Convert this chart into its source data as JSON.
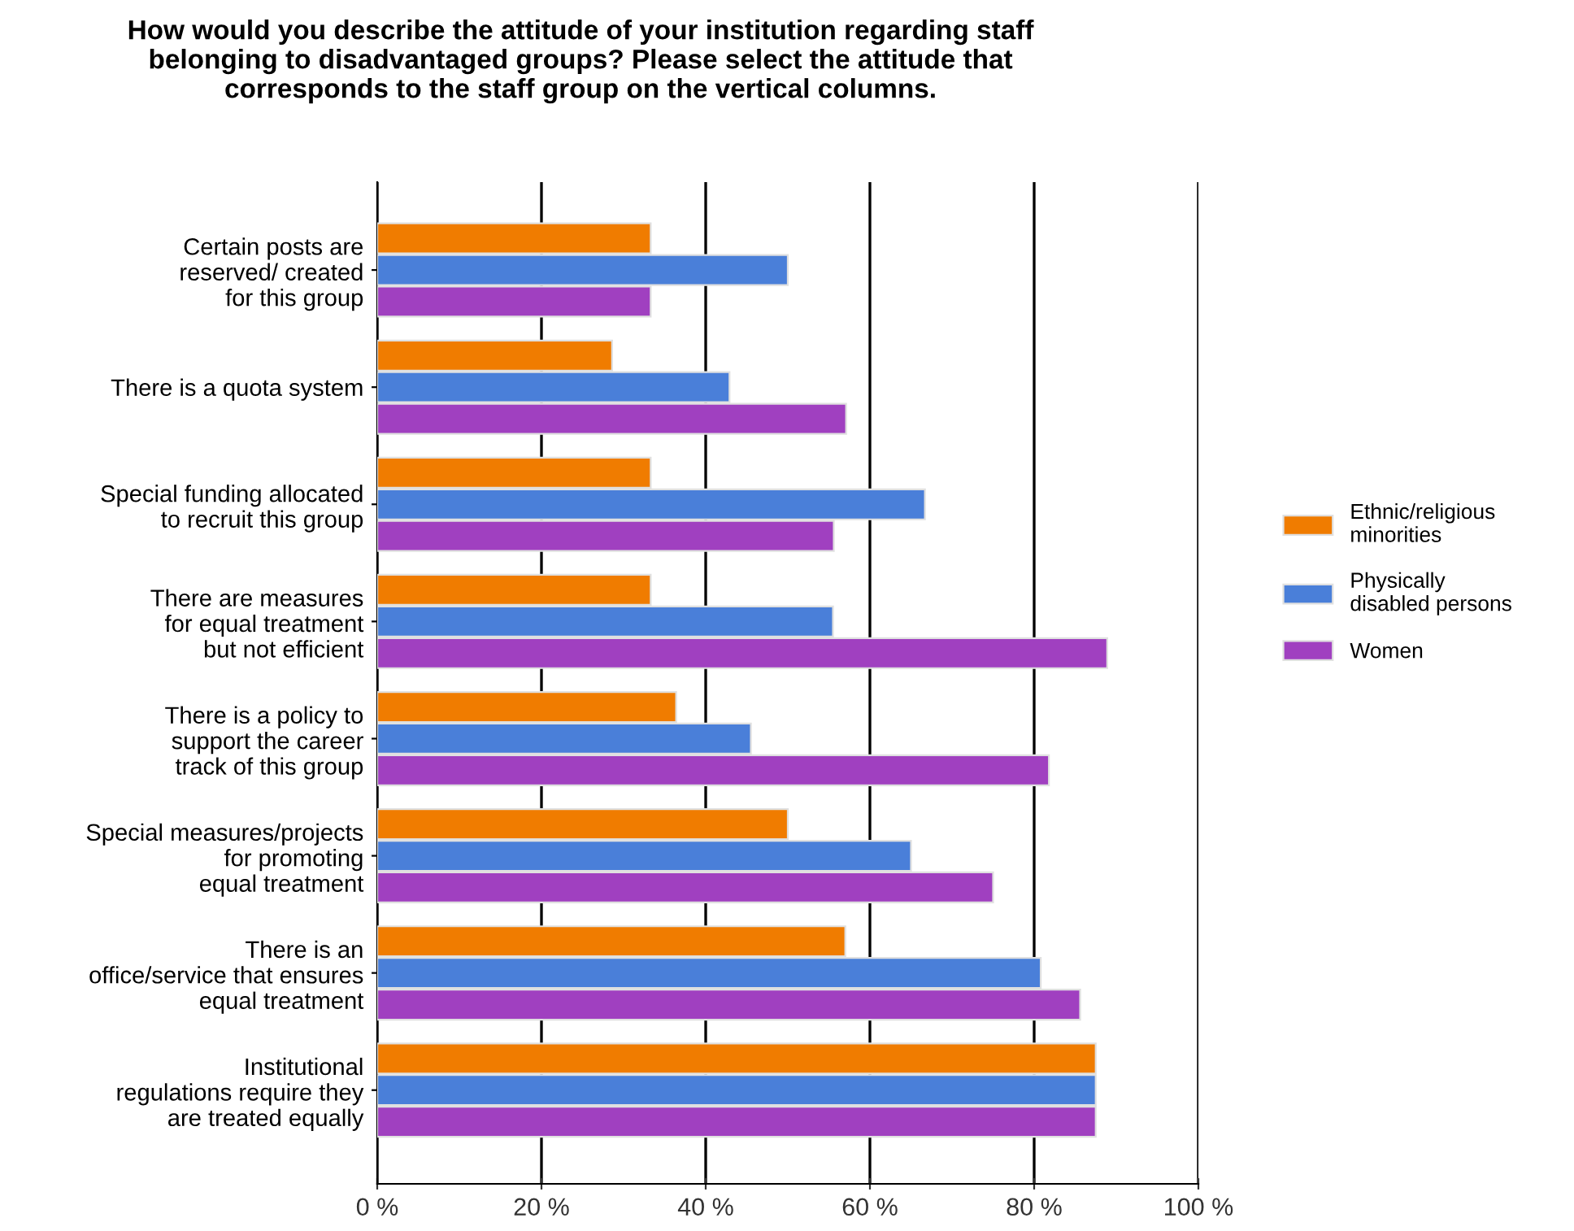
{
  "chart_data": {
    "type": "bar",
    "orientation": "horizontal",
    "title": "How would you describe the attitude of your institution regarding staff\nbelonging to disadvantaged groups? Please select the attitude that\ncorresponds to the staff group on the vertical columns.",
    "categories": [
      "Certain posts are\nreserved/ created\nfor this group",
      "There is a quota system",
      "Special funding allocated\nto recruit this group",
      "There are measures\nfor equal treatment\nbut not efficient",
      "There is a policy to\nsupport the career\ntrack of this group",
      "Special measures/projects\nfor promoting\nequal treatment",
      "There is an\noffice/service that ensures\nequal treatment",
      "Institutional\nregulations require they\nare treated equally"
    ],
    "series": [
      {
        "name": "Ethnic/religious\nminorities",
        "color": "#f07c00",
        "values": [
          33.3,
          28.6,
          33.3,
          33.3,
          36.4,
          50,
          57,
          87.5
        ]
      },
      {
        "name": "Physically\ndisabled persons",
        "color": "#4a7fd9",
        "values": [
          50,
          42.9,
          66.7,
          55.5,
          45.5,
          65,
          80.8,
          87.5
        ]
      },
      {
        "name": "Women",
        "color": "#a040c0",
        "values": [
          33.3,
          57.1,
          55.6,
          88.9,
          81.8,
          75,
          85.6,
          87.5
        ]
      }
    ],
    "xlim": [
      0,
      100
    ],
    "xticks": [
      {
        "value": 0,
        "label": "0 %"
      },
      {
        "value": 20,
        "label": "20 %"
      },
      {
        "value": 40,
        "label": "40 %"
      },
      {
        "value": 60,
        "label": "60 %"
      },
      {
        "value": 80,
        "label": "80 %"
      },
      {
        "value": 100,
        "label": "100 %"
      }
    ],
    "grid": "x",
    "legend": "right"
  }
}
